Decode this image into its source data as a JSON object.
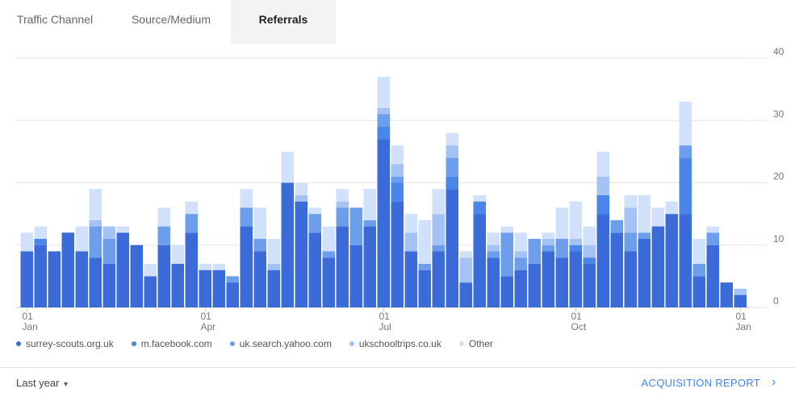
{
  "tabs": [
    "Traffic Channel",
    "Source/Medium",
    "Referrals"
  ],
  "chart_data": {
    "type": "bar",
    "stacked": true,
    "categories": [
      "01 Jan",
      null,
      null,
      null,
      null,
      null,
      null,
      null,
      null,
      null,
      null,
      null,
      null,
      "01 Apr",
      null,
      null,
      null,
      null,
      null,
      null,
      null,
      null,
      null,
      null,
      null,
      null,
      "01 Jul",
      null,
      null,
      null,
      null,
      null,
      null,
      null,
      null,
      null,
      null,
      null,
      null,
      null,
      "01 Oct",
      null,
      null,
      null,
      null,
      null,
      null,
      null,
      null,
      null,
      null,
      null,
      "01 Jan"
    ],
    "series": [
      {
        "name": "surrey-scouts.org.uk",
        "color": "#3b6bd8",
        "values": [
          9,
          10,
          9,
          12,
          9,
          8,
          7,
          12,
          10,
          5,
          10,
          7,
          12,
          6,
          6,
          4,
          13,
          9,
          6,
          20,
          17,
          12,
          8,
          13,
          10,
          13,
          27,
          17,
          9,
          6,
          9,
          19,
          4,
          15,
          8,
          5,
          6,
          7,
          9,
          8,
          9,
          7,
          15,
          12,
          9,
          11,
          13,
          15,
          15,
          5,
          10,
          4,
          2
        ]
      },
      {
        "name": "m.facebook.com",
        "color": "#4a86e8",
        "values": [
          0,
          1,
          0,
          0,
          0,
          0,
          0,
          0,
          0,
          0,
          0,
          0,
          0,
          0,
          0,
          0,
          0,
          0,
          0,
          0,
          0,
          0,
          0,
          0,
          0,
          0,
          2,
          3,
          0,
          0,
          0,
          2,
          0,
          2,
          0,
          0,
          0,
          0,
          0,
          0,
          1,
          1,
          3,
          0,
          0,
          0,
          0,
          0,
          9,
          0,
          0,
          0,
          0
        ]
      },
      {
        "name": "uk.search.yahoo.com",
        "color": "#6d9eeb",
        "values": [
          0,
          0,
          0,
          0,
          0,
          5,
          4,
          0,
          0,
          0,
          3,
          0,
          3,
          0,
          0,
          1,
          3,
          2,
          0,
          0,
          0,
          3,
          1,
          3,
          6,
          1,
          2,
          1,
          0,
          1,
          1,
          3,
          0,
          0,
          1,
          7,
          2,
          4,
          1,
          3,
          0,
          0,
          0,
          2,
          3,
          1,
          0,
          0,
          2,
          2,
          2,
          0,
          0
        ]
      },
      {
        "name": "ukschooltrips.co.uk",
        "color": "#a4c2f4",
        "values": [
          0,
          0,
          0,
          0,
          0,
          1,
          2,
          0,
          0,
          0,
          0,
          0,
          0,
          0,
          0,
          0,
          0,
          0,
          1,
          0,
          1,
          0,
          0,
          1,
          0,
          0,
          1,
          2,
          3,
          0,
          5,
          2,
          4,
          0,
          1,
          0,
          1,
          0,
          1,
          0,
          1,
          2,
          3,
          0,
          4,
          0,
          0,
          0,
          0,
          0,
          0,
          0,
          1
        ]
      },
      {
        "name": "Other",
        "color": "#d2e1fb",
        "values": [
          3,
          2,
          0,
          0,
          4,
          5,
          0,
          1,
          0,
          2,
          3,
          3,
          2,
          1,
          1,
          0,
          3,
          5,
          4,
          5,
          2,
          1,
          4,
          2,
          0,
          5,
          5,
          3,
          3,
          7,
          4,
          2,
          1,
          1,
          2,
          1,
          3,
          0,
          1,
          5,
          6,
          3,
          4,
          0,
          2,
          6,
          3,
          2,
          7,
          4,
          1,
          0,
          0
        ]
      }
    ],
    "ylim": [
      0,
      40
    ],
    "yticks": [
      0,
      10,
      20,
      30,
      40
    ],
    "grid": true
  },
  "footer": {
    "period": "Last year",
    "link": "ACQUISITION REPORT"
  }
}
